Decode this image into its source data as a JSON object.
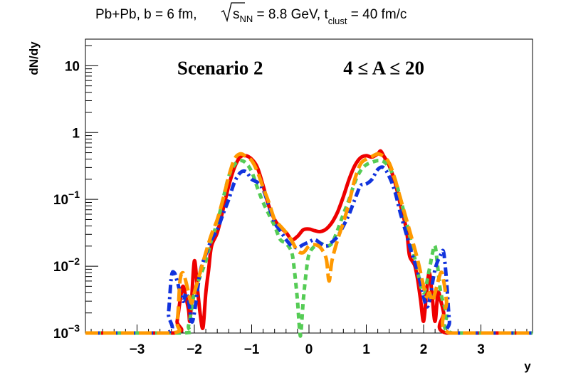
{
  "chart_data": {
    "type": "line",
    "title": {
      "prefix": "Pb+Pb, b = 6 fm, ",
      "sqrt_label": "s",
      "sqrt_sub": "NN",
      "energy": " = 8.8 GeV, t",
      "t_sub": "clust",
      "t_value": " = 40 fm/c"
    },
    "xlabel": "y",
    "ylabel": "dN/dy",
    "xlim": [
      -3.9,
      3.9
    ],
    "ylim": [
      0.001,
      25
    ],
    "yscale": "log",
    "x_ticks": [
      {
        "value": -3,
        "label": "−3"
      },
      {
        "value": -2,
        "label": "−2"
      },
      {
        "value": -1,
        "label": "−1"
      },
      {
        "value": 0,
        "label": "0"
      },
      {
        "value": 1,
        "label": "1"
      },
      {
        "value": 2,
        "label": "2"
      },
      {
        "value": 3,
        "label": "3"
      }
    ],
    "y_ticks": [
      {
        "value": 0.001,
        "base": "10",
        "exp": "−3"
      },
      {
        "value": 0.01,
        "base": "10",
        "exp": "−2"
      },
      {
        "value": 0.1,
        "base": "10",
        "exp": "−1"
      },
      {
        "value": 1,
        "base": "1",
        "exp": ""
      },
      {
        "value": 10,
        "base": "10",
        "exp": ""
      }
    ],
    "annotations": [
      {
        "text": "Scenario 2",
        "x": -2.3,
        "y": 9.5
      },
      {
        "text": "4 ≤ A ≤ 20",
        "x": 0.6,
        "y": 9.5
      }
    ],
    "series": [
      {
        "name": "red-solid",
        "color": "#ee0000",
        "dash": "",
        "points": [
          [
            -3.9,
            0.001
          ],
          [
            -2.35,
            0.001
          ],
          [
            -2.3,
            0.0015
          ],
          [
            -2.25,
            0.003
          ],
          [
            -2.2,
            0.005
          ],
          [
            -2.15,
            0.0035
          ],
          [
            -2.1,
            0.0022
          ],
          [
            -2.08,
            0.0015
          ],
          [
            -2.05,
            0.0028
          ],
          [
            -2.0,
            0.012
          ],
          [
            -1.95,
            0.005
          ],
          [
            -1.9,
            0.002
          ],
          [
            -1.85,
            0.0012
          ],
          [
            -1.8,
            0.004
          ],
          [
            -1.75,
            0.009
          ],
          [
            -1.7,
            0.02
          ],
          [
            -1.6,
            0.032
          ],
          [
            -1.5,
            0.07
          ],
          [
            -1.4,
            0.16
          ],
          [
            -1.3,
            0.3
          ],
          [
            -1.2,
            0.43
          ],
          [
            -1.1,
            0.45
          ],
          [
            -1.0,
            0.4
          ],
          [
            -0.9,
            0.3
          ],
          [
            -0.8,
            0.16
          ],
          [
            -0.7,
            0.08
          ],
          [
            -0.6,
            0.05
          ],
          [
            -0.5,
            0.038
          ],
          [
            -0.4,
            0.032
          ],
          [
            -0.3,
            0.025
          ],
          [
            -0.2,
            0.028
          ],
          [
            -0.1,
            0.035
          ],
          [
            0.0,
            0.036
          ],
          [
            0.1,
            0.034
          ],
          [
            0.2,
            0.033
          ],
          [
            0.3,
            0.036
          ],
          [
            0.4,
            0.045
          ],
          [
            0.5,
            0.065
          ],
          [
            0.6,
            0.11
          ],
          [
            0.7,
            0.2
          ],
          [
            0.8,
            0.32
          ],
          [
            0.9,
            0.42
          ],
          [
            1.0,
            0.45
          ],
          [
            1.1,
            0.43
          ],
          [
            1.2,
            0.48
          ],
          [
            1.25,
            0.53
          ],
          [
            1.3,
            0.45
          ],
          [
            1.4,
            0.32
          ],
          [
            1.5,
            0.18
          ],
          [
            1.6,
            0.08
          ],
          [
            1.7,
            0.035
          ],
          [
            1.75,
            0.015
          ],
          [
            1.8,
            0.012
          ],
          [
            1.85,
            0.01
          ],
          [
            1.9,
            0.006
          ],
          [
            1.95,
            0.003
          ],
          [
            2.0,
            0.0015
          ],
          [
            2.05,
            0.004
          ],
          [
            2.1,
            0.008
          ],
          [
            2.15,
            0.0035
          ],
          [
            2.2,
            0.0015
          ],
          [
            2.25,
            0.004
          ],
          [
            2.3,
            0.003
          ],
          [
            2.35,
            0.002
          ],
          [
            2.4,
            0.001
          ],
          [
            3.9,
            0.001
          ]
        ]
      },
      {
        "name": "green-dotted",
        "color": "#55cc55",
        "dash": "8,6",
        "points": [
          [
            -3.9,
            0.001
          ],
          [
            -2.2,
            0.001
          ],
          [
            -2.1,
            0.0013
          ],
          [
            -2.0,
            0.004
          ],
          [
            -1.9,
            0.007
          ],
          [
            -1.8,
            0.012
          ],
          [
            -1.7,
            0.025
          ],
          [
            -1.6,
            0.045
          ],
          [
            -1.5,
            0.1
          ],
          [
            -1.4,
            0.22
          ],
          [
            -1.3,
            0.33
          ],
          [
            -1.2,
            0.38
          ],
          [
            -1.1,
            0.35
          ],
          [
            -1.0,
            0.26
          ],
          [
            -0.9,
            0.15
          ],
          [
            -0.8,
            0.09
          ],
          [
            -0.7,
            0.06
          ],
          [
            -0.6,
            0.04
          ],
          [
            -0.5,
            0.025
          ],
          [
            -0.4,
            0.022
          ],
          [
            -0.3,
            0.016
          ],
          [
            -0.25,
            0.008
          ],
          [
            -0.2,
            0.003
          ],
          [
            -0.15,
            0.0009
          ],
          [
            -0.1,
            0.003
          ],
          [
            -0.05,
            0.008
          ],
          [
            0.0,
            0.015
          ],
          [
            0.1,
            0.02
          ],
          [
            0.2,
            0.022
          ],
          [
            0.3,
            0.02
          ],
          [
            0.4,
            0.022
          ],
          [
            0.5,
            0.035
          ],
          [
            0.6,
            0.06
          ],
          [
            0.7,
            0.1
          ],
          [
            0.8,
            0.18
          ],
          [
            0.9,
            0.27
          ],
          [
            1.0,
            0.33
          ],
          [
            1.1,
            0.36
          ],
          [
            1.2,
            0.38
          ],
          [
            1.3,
            0.37
          ],
          [
            1.4,
            0.3
          ],
          [
            1.5,
            0.2
          ],
          [
            1.6,
            0.1
          ],
          [
            1.7,
            0.045
          ],
          [
            1.8,
            0.02
          ],
          [
            1.9,
            0.008
          ],
          [
            2.0,
            0.004
          ],
          [
            2.1,
            0.009
          ],
          [
            2.15,
            0.015
          ],
          [
            2.2,
            0.02
          ],
          [
            2.25,
            0.009
          ],
          [
            2.3,
            0.004
          ],
          [
            2.4,
            0.002
          ],
          [
            2.5,
            0.001
          ],
          [
            3.9,
            0.001
          ]
        ]
      },
      {
        "name": "blue-dashdot",
        "color": "#1133dd",
        "dash": "12,5,3,5",
        "points": [
          [
            -3.9,
            0.001
          ],
          [
            -2.5,
            0.001
          ],
          [
            -2.45,
            0.002
          ],
          [
            -2.4,
            0.007
          ],
          [
            -2.35,
            0.008
          ],
          [
            -2.3,
            0.006
          ],
          [
            -2.2,
            0.003
          ],
          [
            -2.15,
            0.004
          ],
          [
            -2.1,
            0.003
          ],
          [
            -2.05,
            0.0015
          ],
          [
            -2.0,
            0.002
          ],
          [
            -1.9,
            0.008
          ],
          [
            -1.8,
            0.015
          ],
          [
            -1.7,
            0.025
          ],
          [
            -1.6,
            0.035
          ],
          [
            -1.5,
            0.06
          ],
          [
            -1.4,
            0.1
          ],
          [
            -1.3,
            0.18
          ],
          [
            -1.2,
            0.25
          ],
          [
            -1.1,
            0.26
          ],
          [
            -1.0,
            0.2
          ],
          [
            -0.9,
            0.18
          ],
          [
            -0.8,
            0.14
          ],
          [
            -0.7,
            0.08
          ],
          [
            -0.6,
            0.045
          ],
          [
            -0.5,
            0.034
          ],
          [
            -0.4,
            0.025
          ],
          [
            -0.3,
            0.02
          ],
          [
            -0.2,
            0.019
          ],
          [
            -0.1,
            0.021
          ],
          [
            0.0,
            0.023
          ],
          [
            0.1,
            0.025
          ],
          [
            0.2,
            0.022
          ],
          [
            0.3,
            0.02
          ],
          [
            0.4,
            0.023
          ],
          [
            0.5,
            0.028
          ],
          [
            0.6,
            0.04
          ],
          [
            0.7,
            0.06
          ],
          [
            0.8,
            0.1
          ],
          [
            0.9,
            0.16
          ],
          [
            1.0,
            0.17
          ],
          [
            1.1,
            0.2
          ],
          [
            1.2,
            0.28
          ],
          [
            1.3,
            0.3
          ],
          [
            1.4,
            0.22
          ],
          [
            1.5,
            0.13
          ],
          [
            1.6,
            0.06
          ],
          [
            1.7,
            0.03
          ],
          [
            1.8,
            0.015
          ],
          [
            1.9,
            0.008
          ],
          [
            2.0,
            0.0035
          ],
          [
            2.05,
            0.0025
          ],
          [
            2.1,
            0.003
          ],
          [
            2.2,
            0.009
          ],
          [
            2.3,
            0.015
          ],
          [
            2.35,
            0.016
          ],
          [
            2.4,
            0.006
          ],
          [
            2.45,
            0.0015
          ],
          [
            2.5,
            0.001
          ],
          [
            3.9,
            0.001
          ]
        ]
      },
      {
        "name": "orange-longdash",
        "color": "#ff9900",
        "dash": "18,7",
        "points": [
          [
            -3.9,
            0.001
          ],
          [
            -2.4,
            0.001
          ],
          [
            -2.3,
            0.0015
          ],
          [
            -2.25,
            0.006
          ],
          [
            -2.2,
            0.008
          ],
          [
            -2.15,
            0.006
          ],
          [
            -2.1,
            0.004
          ],
          [
            -2.05,
            0.0028
          ],
          [
            -2.0,
            0.004
          ],
          [
            -1.9,
            0.008
          ],
          [
            -1.8,
            0.016
          ],
          [
            -1.7,
            0.03
          ],
          [
            -1.6,
            0.05
          ],
          [
            -1.5,
            0.1
          ],
          [
            -1.4,
            0.22
          ],
          [
            -1.3,
            0.4
          ],
          [
            -1.2,
            0.48
          ],
          [
            -1.1,
            0.44
          ],
          [
            -1.0,
            0.38
          ],
          [
            -0.9,
            0.26
          ],
          [
            -0.8,
            0.15
          ],
          [
            -0.7,
            0.09
          ],
          [
            -0.6,
            0.05
          ],
          [
            -0.5,
            0.04
          ],
          [
            -0.4,
            0.032
          ],
          [
            -0.3,
            0.024
          ],
          [
            -0.2,
            0.017
          ],
          [
            -0.1,
            0.016
          ],
          [
            0.0,
            0.02
          ],
          [
            0.1,
            0.021
          ],
          [
            0.2,
            0.019
          ],
          [
            0.3,
            0.013
          ],
          [
            0.35,
            0.006
          ],
          [
            0.4,
            0.012
          ],
          [
            0.5,
            0.025
          ],
          [
            0.6,
            0.045
          ],
          [
            0.7,
            0.09
          ],
          [
            0.8,
            0.2
          ],
          [
            0.9,
            0.34
          ],
          [
            1.0,
            0.4
          ],
          [
            1.1,
            0.44
          ],
          [
            1.2,
            0.48
          ],
          [
            1.3,
            0.44
          ],
          [
            1.4,
            0.35
          ],
          [
            1.5,
            0.2
          ],
          [
            1.6,
            0.1
          ],
          [
            1.7,
            0.05
          ],
          [
            1.8,
            0.025
          ],
          [
            1.9,
            0.012
          ],
          [
            2.0,
            0.005
          ],
          [
            2.05,
            0.0035
          ],
          [
            2.1,
            0.004
          ],
          [
            2.15,
            0.003
          ],
          [
            2.2,
            0.004
          ],
          [
            2.3,
            0.008
          ],
          [
            2.35,
            0.006
          ],
          [
            2.4,
            0.003
          ],
          [
            2.45,
            0.001
          ],
          [
            3.9,
            0.001
          ]
        ]
      }
    ]
  }
}
